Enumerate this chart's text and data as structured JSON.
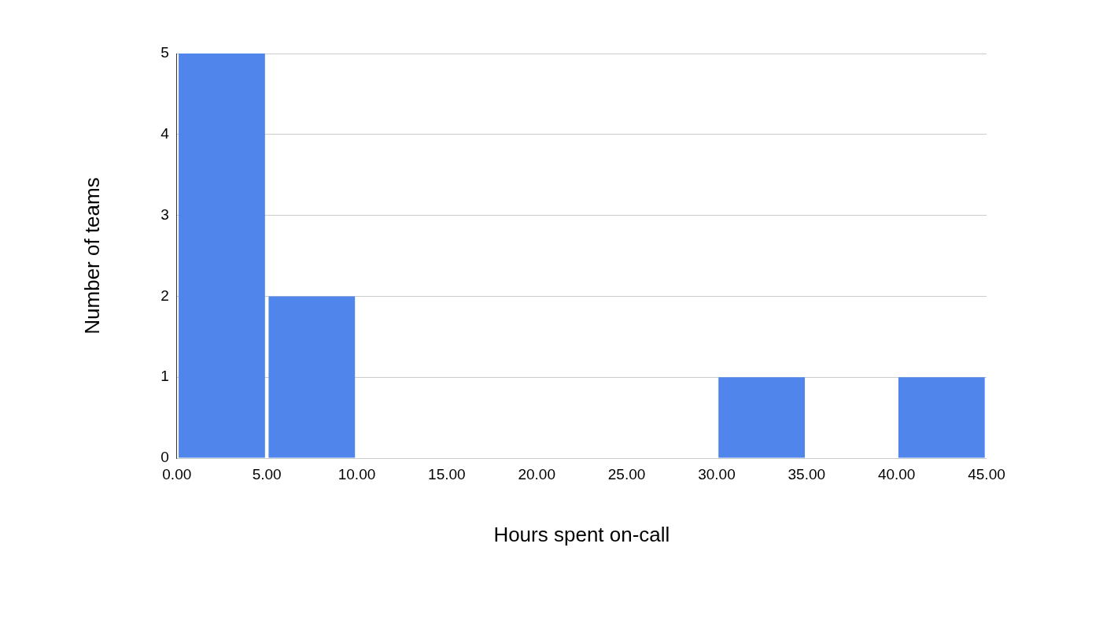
{
  "chart_data": {
    "type": "histogram",
    "xlabel": "Hours spent on-call",
    "ylabel": "Number of teams",
    "bins": [
      0,
      5,
      10,
      15,
      20,
      25,
      30,
      35,
      40,
      45
    ],
    "values": [
      5,
      2,
      0,
      0,
      0,
      0,
      1,
      0,
      1
    ],
    "color": "#5086ec",
    "xlim": [
      0,
      45
    ],
    "xticks": [
      {
        "value": 0,
        "label": "0.00"
      },
      {
        "value": 5,
        "label": "5.00"
      },
      {
        "value": 10,
        "label": "10.00"
      },
      {
        "value": 15,
        "label": "15.00"
      },
      {
        "value": 20,
        "label": "20.00"
      },
      {
        "value": 25,
        "label": "25.00"
      },
      {
        "value": 30,
        "label": "30.00"
      },
      {
        "value": 35,
        "label": "35.00"
      },
      {
        "value": 40,
        "label": "40.00"
      },
      {
        "value": 45,
        "label": "45.00"
      }
    ],
    "ylim": [
      0,
      5
    ],
    "yticks": [
      0,
      1,
      2,
      3,
      4,
      5
    ],
    "grid": "y",
    "legend": false
  }
}
